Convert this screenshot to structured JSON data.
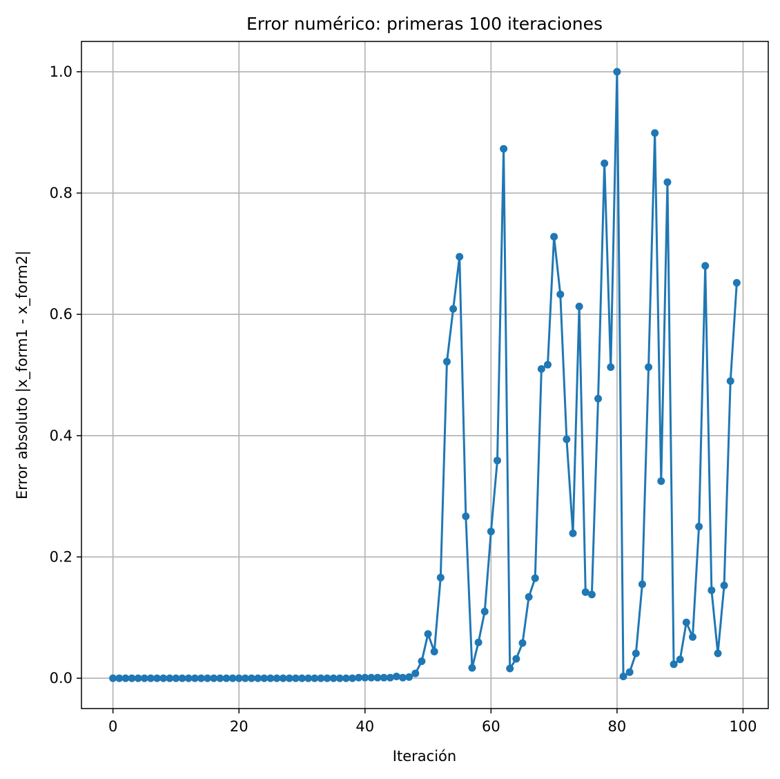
{
  "chart_data": {
    "type": "line",
    "title": "Error numérico: primeras 100 iteraciones",
    "xlabel": "Iteración",
    "ylabel": "Error absoluto |x_form1 - x_form2|",
    "xlim": [
      -5,
      104
    ],
    "ylim": [
      -0.05,
      1.05
    ],
    "xticks": [
      0,
      20,
      40,
      60,
      80,
      100
    ],
    "xtick_labels": [
      "0",
      "20",
      "40",
      "60",
      "80",
      "100"
    ],
    "yticks": [
      0.0,
      0.2,
      0.4,
      0.6,
      0.8,
      1.0
    ],
    "ytick_labels": [
      "0.0",
      "0.2",
      "0.4",
      "0.6",
      "0.8",
      "1.0"
    ],
    "grid": true,
    "marker": "circle",
    "series": [
      {
        "color": "#1f77b4",
        "x": [
          0,
          1,
          2,
          3,
          4,
          5,
          6,
          7,
          8,
          9,
          10,
          11,
          12,
          13,
          14,
          15,
          16,
          17,
          18,
          19,
          20,
          21,
          22,
          23,
          24,
          25,
          26,
          27,
          28,
          29,
          30,
          31,
          32,
          33,
          34,
          35,
          36,
          37,
          38,
          39,
          40,
          41,
          42,
          43,
          44,
          45,
          46,
          47,
          48,
          49,
          50,
          51,
          52,
          53,
          54,
          55,
          56,
          57,
          58,
          59,
          60,
          61,
          62,
          63,
          64,
          65,
          66,
          67,
          68,
          69,
          70,
          71,
          72,
          73,
          74,
          75,
          76,
          77,
          78,
          79,
          80,
          81,
          82,
          83,
          84,
          85,
          86,
          87,
          88,
          89,
          90,
          91,
          92,
          93,
          94,
          95,
          96,
          97,
          98,
          99
        ],
        "y": [
          0,
          0,
          0,
          0,
          0,
          0,
          0,
          0,
          0,
          0,
          0,
          0,
          0,
          0,
          0,
          0,
          0,
          0,
          0,
          0,
          0,
          0,
          0,
          0,
          0,
          0,
          0,
          0,
          0,
          0,
          0,
          0,
          0,
          0,
          0,
          0,
          0,
          0,
          0,
          0.001,
          0.001,
          0.001,
          0.001,
          0.001,
          0.001,
          0.003,
          0.001,
          0.002,
          0.008,
          0.028,
          0.073,
          0.044,
          0.166,
          0.522,
          0.609,
          0.695,
          0.267,
          0.017,
          0.059,
          0.11,
          0.242,
          0.359,
          0.873,
          0.016,
          0.032,
          0.058,
          0.134,
          0.165,
          0.51,
          0.517,
          0.728,
          0.633,
          0.394,
          0.239,
          0.613,
          0.142,
          0.138,
          0.461,
          0.849,
          0.513,
          1.0,
          0.003,
          0.01,
          0.041,
          0.155,
          0.513,
          0.899,
          0.325,
          0.818,
          0.023,
          0.031,
          0.092,
          0.068,
          0.25,
          0.68,
          0.145,
          0.041,
          0.153,
          0.49,
          0.652
        ]
      }
    ]
  }
}
